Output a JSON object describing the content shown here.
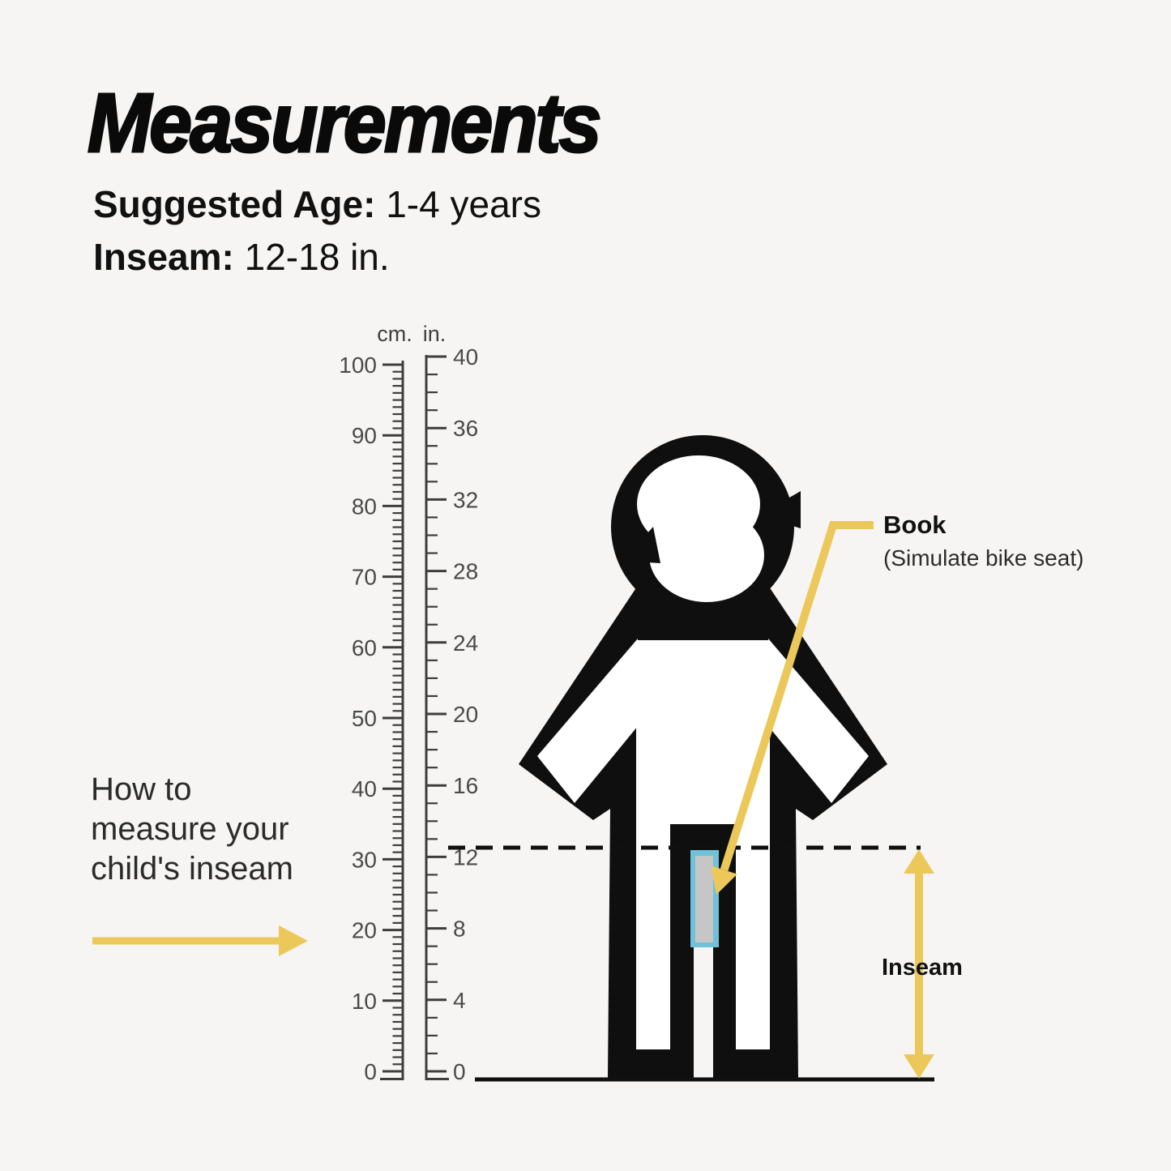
{
  "title": "Measurements",
  "specs": {
    "age_label": "Suggested Age:",
    "age_value": " 1-4 years",
    "inseam_label": "Inseam:",
    "inseam_value": " 12-18 in."
  },
  "howto": {
    "lines": [
      "How to",
      "measure your",
      "child's inseam"
    ]
  },
  "callout": {
    "title": "Book",
    "subtitle": "(Simulate bike seat)"
  },
  "inseam_arrow_label": "Inseam",
  "ruler": {
    "cm": {
      "header": "cm.",
      "major_step": 10,
      "max": 100,
      "labels": [
        0,
        10,
        20,
        30,
        40,
        50,
        60,
        70,
        80,
        90,
        100
      ]
    },
    "in": {
      "header": "in.",
      "major_step": 4,
      "max": 40,
      "labels": [
        0,
        4,
        8,
        12,
        16,
        20,
        24,
        28,
        32,
        36,
        40
      ]
    }
  },
  "colors": {
    "background": "#F6F5F3",
    "ink": "#0F0F0F",
    "accent_yellow": "#ECC85A",
    "book_blue": "#6FC2DA",
    "book_gray": "#C6C6C7",
    "ruler_line": "#3D3D3D",
    "ruler_label": "#4A4A4A"
  }
}
